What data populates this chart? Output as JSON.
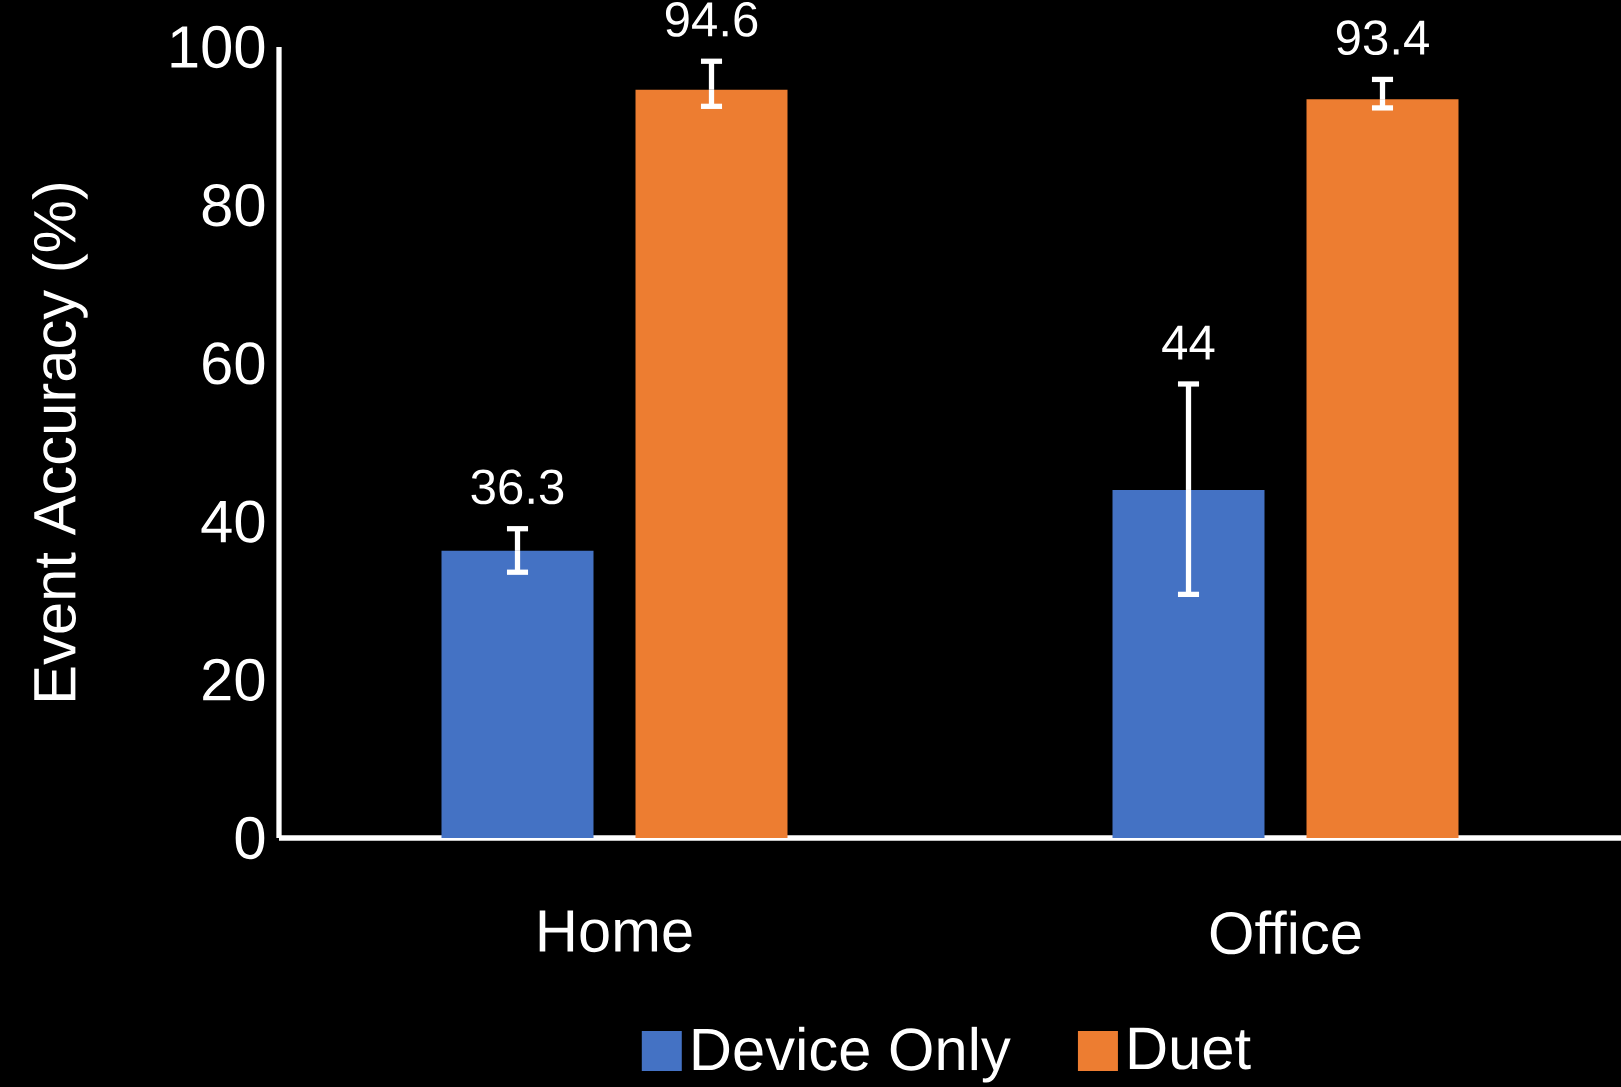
{
  "chart_data": {
    "type": "bar",
    "ylabel": "Event Accuracy (%)",
    "categories": [
      "Home",
      "Office"
    ],
    "series": [
      {
        "name": "Device Only",
        "color": "#4472c4",
        "values": [
          36.3,
          44
        ],
        "errors": [
          [
            33.6,
            39.1
          ],
          [
            30.8,
            57.4
          ]
        ]
      },
      {
        "name": "Duet",
        "color": "#ed7d31",
        "values": [
          94.6,
          93.4
        ],
        "errors": [
          [
            92.5,
            98.2
          ],
          [
            92.3,
            95.9
          ]
        ]
      }
    ],
    "ylim": [
      0,
      100
    ],
    "yticks": [
      0,
      20,
      40,
      60,
      80,
      100
    ],
    "data_labels": true,
    "legend": "bottom",
    "grid": false
  }
}
